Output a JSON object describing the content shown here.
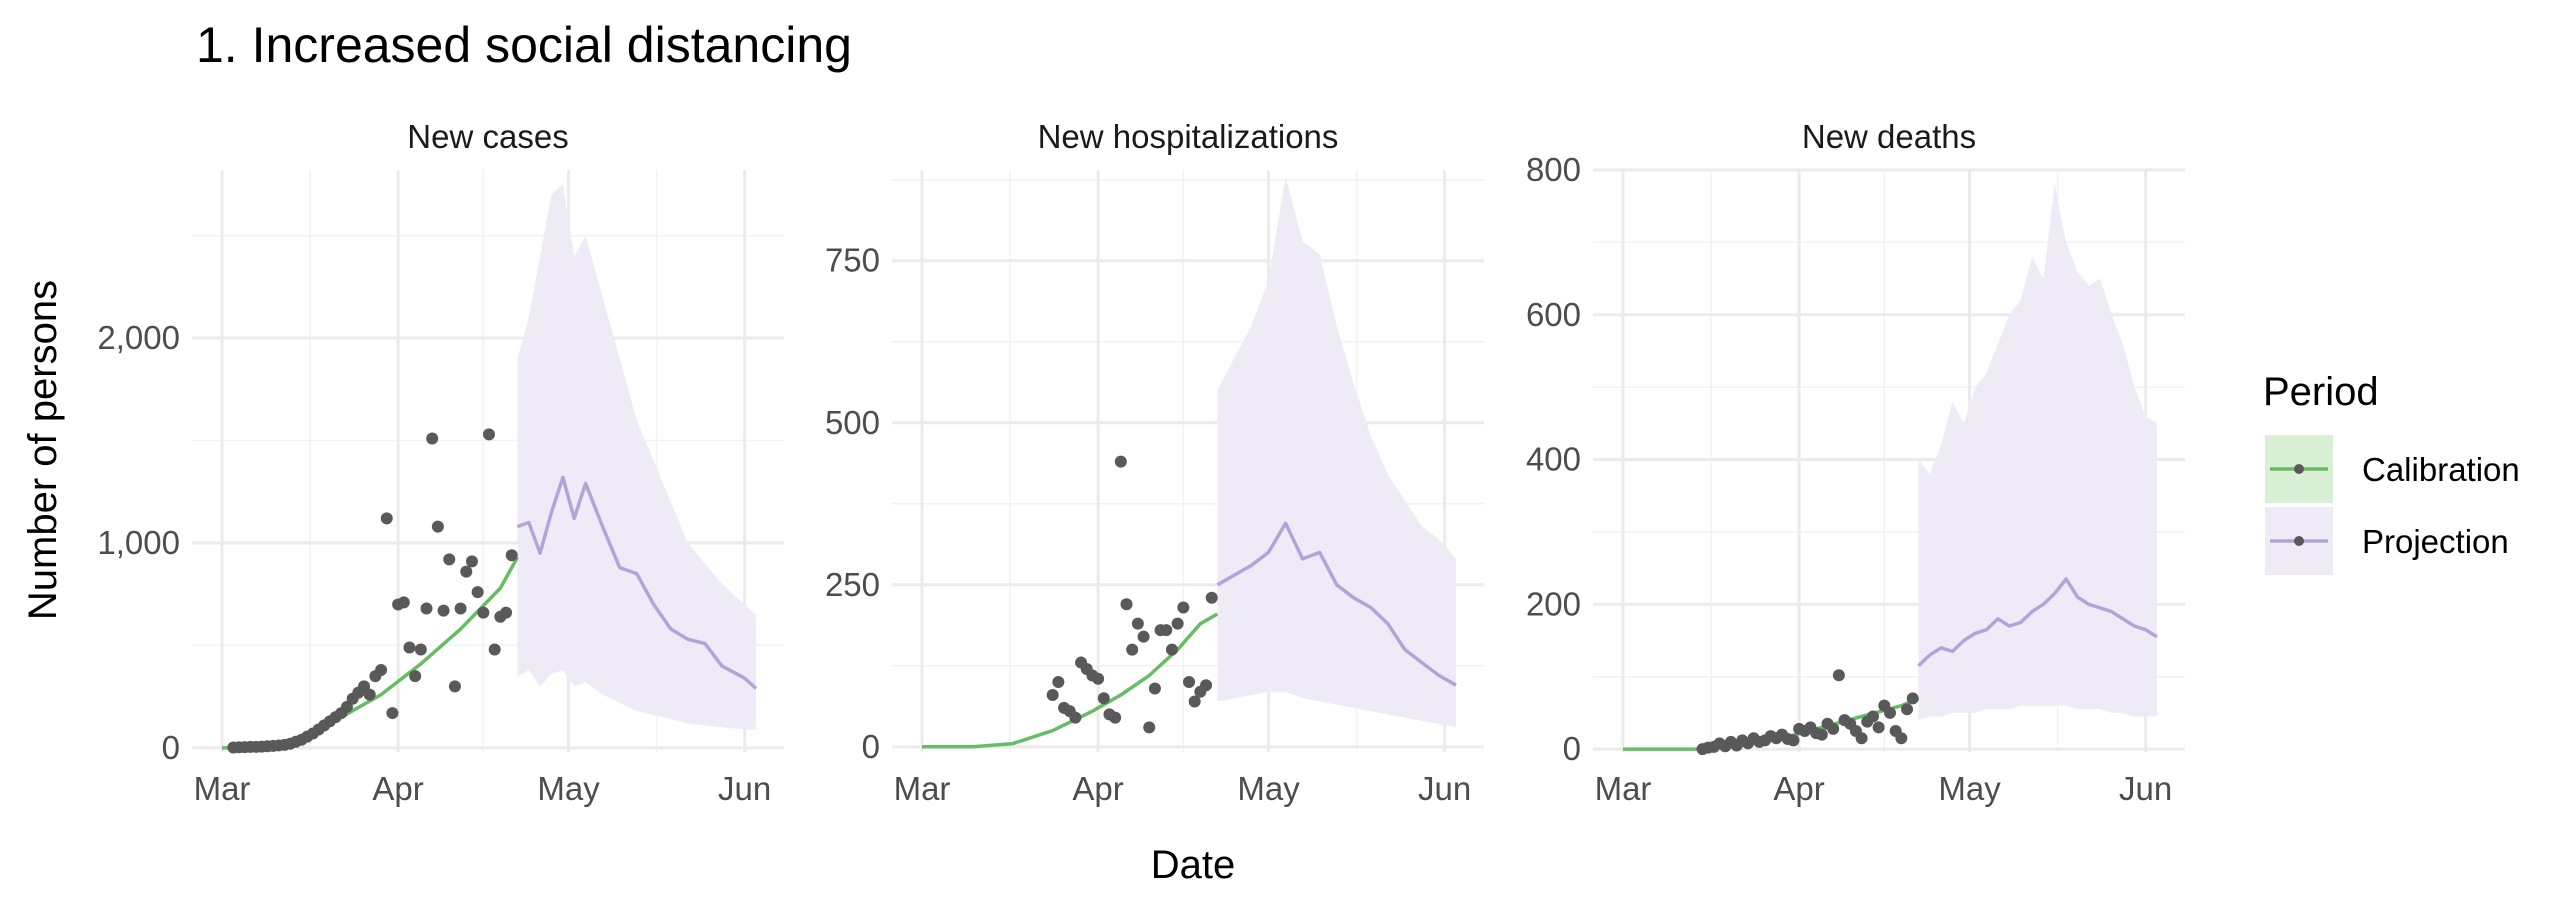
{
  "chart_data": {
    "type": "line",
    "title": "1. Increased social distancing",
    "xlabel": "Date",
    "ylabel": "Number of persons",
    "x_range": [
      "2020-03-01",
      "2020-06-03"
    ],
    "x_ticks": [
      "2020-03-01",
      "2020-04-01",
      "2020-05-01",
      "2020-06-01"
    ],
    "x_tick_labels": [
      "Mar",
      "Apr",
      "May",
      "Jun"
    ],
    "legend": {
      "title": "Period",
      "position": "right",
      "entries": [
        {
          "label": "Calibration",
          "color": "#66bd63"
        },
        {
          "label": "Projection",
          "color": "#b3a4d7"
        }
      ]
    },
    "grid": true,
    "colors": {
      "calibration": "#66bd63",
      "projection": "#b3a4d7",
      "ribbon": "#efebf6",
      "calibration_ribbon": "#d9efd6",
      "points": "#595959",
      "grid": "#ebebeb"
    },
    "panels": [
      {
        "title": "New cases",
        "ylim": [
          -20,
          2820
        ],
        "y_ticks": [
          0,
          1000,
          2000
        ],
        "y_tick_labels": [
          "0",
          "1,000",
          "2,000"
        ],
        "calibration": {
          "x": [
            "2020-03-01",
            "2020-03-08",
            "2020-03-15",
            "2020-03-22",
            "2020-03-29",
            "2020-04-05",
            "2020-04-12",
            "2020-04-19",
            "2020-04-22"
          ],
          "y": [
            0,
            5,
            30,
            150,
            260,
            410,
            580,
            780,
            930
          ]
        },
        "projection": {
          "x": [
            "2020-04-22",
            "2020-04-24",
            "2020-04-26",
            "2020-04-28",
            "2020-04-30",
            "2020-05-02",
            "2020-05-04",
            "2020-05-07",
            "2020-05-10",
            "2020-05-13",
            "2020-05-16",
            "2020-05-19",
            "2020-05-22",
            "2020-05-25",
            "2020-05-28",
            "2020-06-01",
            "2020-06-03"
          ],
          "y": [
            1080,
            1100,
            950,
            1150,
            1320,
            1120,
            1290,
            1080,
            880,
            850,
            700,
            580,
            530,
            510,
            400,
            340,
            290
          ],
          "lower": [
            350,
            380,
            300,
            360,
            380,
            300,
            320,
            260,
            220,
            180,
            160,
            140,
            120,
            110,
            100,
            90,
            90
          ],
          "upper": [
            1900,
            2100,
            2400,
            2700,
            2750,
            2400,
            2500,
            2200,
            1900,
            1600,
            1400,
            1200,
            1000,
            900,
            800,
            700,
            650
          ]
        },
        "observed": {
          "x": [
            "2020-03-03",
            "2020-03-04",
            "2020-03-05",
            "2020-03-06",
            "2020-03-07",
            "2020-03-08",
            "2020-03-09",
            "2020-03-10",
            "2020-03-11",
            "2020-03-12",
            "2020-03-13",
            "2020-03-14",
            "2020-03-15",
            "2020-03-16",
            "2020-03-17",
            "2020-03-18",
            "2020-03-19",
            "2020-03-20",
            "2020-03-21",
            "2020-03-22",
            "2020-03-23",
            "2020-03-24",
            "2020-03-25",
            "2020-03-26",
            "2020-03-27",
            "2020-03-28",
            "2020-03-29",
            "2020-03-30",
            "2020-03-31",
            "2020-04-01",
            "2020-04-02",
            "2020-04-03",
            "2020-04-04",
            "2020-04-05",
            "2020-04-06",
            "2020-04-07",
            "2020-04-08",
            "2020-04-09",
            "2020-04-10",
            "2020-04-11",
            "2020-04-12",
            "2020-04-13",
            "2020-04-14",
            "2020-04-15",
            "2020-04-16",
            "2020-04-17",
            "2020-04-18",
            "2020-04-19",
            "2020-04-20",
            "2020-04-21"
          ],
          "y": [
            2,
            3,
            4,
            5,
            5,
            6,
            8,
            10,
            12,
            15,
            20,
            30,
            40,
            55,
            70,
            90,
            110,
            130,
            150,
            170,
            200,
            240,
            270,
            300,
            260,
            350,
            380,
            1120,
            170,
            700,
            710,
            490,
            350,
            480,
            680,
            1510,
            1080,
            670,
            920,
            300,
            680,
            860,
            910,
            760,
            660,
            1530,
            480,
            640,
            660,
            940
          ]
        }
      },
      {
        "title": "New hospitalizations",
        "ylim": [
          -8,
          890
        ],
        "y_ticks": [
          0,
          250,
          500,
          750
        ],
        "y_tick_labels": [
          "0",
          "250",
          "500",
          "750"
        ],
        "calibration": {
          "x": [
            "2020-03-01",
            "2020-03-10",
            "2020-03-17",
            "2020-03-24",
            "2020-03-31",
            "2020-04-05",
            "2020-04-10",
            "2020-04-15",
            "2020-04-19",
            "2020-04-22"
          ],
          "y": [
            0,
            0,
            5,
            25,
            55,
            80,
            110,
            150,
            190,
            205
          ]
        },
        "projection": {
          "x": [
            "2020-04-22",
            "2020-04-25",
            "2020-04-28",
            "2020-05-01",
            "2020-05-04",
            "2020-05-07",
            "2020-05-10",
            "2020-05-13",
            "2020-05-16",
            "2020-05-19",
            "2020-05-22",
            "2020-05-25",
            "2020-05-28",
            "2020-05-31",
            "2020-06-03"
          ],
          "y": [
            250,
            265,
            280,
            300,
            345,
            290,
            300,
            250,
            230,
            215,
            190,
            150,
            130,
            110,
            95
          ],
          "lower": [
            70,
            75,
            80,
            85,
            85,
            75,
            70,
            65,
            60,
            55,
            50,
            45,
            40,
            35,
            30
          ],
          "upper": [
            550,
            600,
            650,
            720,
            880,
            780,
            760,
            650,
            560,
            480,
            420,
            380,
            340,
            320,
            290
          ]
        },
        "observed": {
          "x": [
            "2020-03-24",
            "2020-03-25",
            "2020-03-26",
            "2020-03-27",
            "2020-03-28",
            "2020-03-29",
            "2020-03-30",
            "2020-03-31",
            "2020-04-01",
            "2020-04-02",
            "2020-04-03",
            "2020-04-04",
            "2020-04-05",
            "2020-04-06",
            "2020-04-07",
            "2020-04-08",
            "2020-04-09",
            "2020-04-10",
            "2020-04-11",
            "2020-04-12",
            "2020-04-13",
            "2020-04-14",
            "2020-04-15",
            "2020-04-16",
            "2020-04-17",
            "2020-04-18",
            "2020-04-19",
            "2020-04-20",
            "2020-04-21"
          ],
          "y": [
            80,
            100,
            60,
            55,
            45,
            130,
            120,
            110,
            105,
            75,
            50,
            45,
            440,
            220,
            150,
            190,
            170,
            30,
            90,
            180,
            180,
            150,
            190,
            215,
            100,
            70,
            85,
            95,
            230
          ]
        }
      },
      {
        "title": "New deaths",
        "ylim": [
          -4,
          800
        ],
        "y_ticks": [
          0,
          200,
          400,
          600,
          800
        ],
        "y_tick_labels": [
          "0",
          "200",
          "400",
          "600",
          "800"
        ],
        "calibration": {
          "x": [
            "2020-03-01",
            "2020-03-15",
            "2020-03-22",
            "2020-03-29",
            "2020-04-05",
            "2020-04-12",
            "2020-04-19",
            "2020-04-22"
          ],
          "y": [
            0,
            0,
            5,
            15,
            30,
            45,
            60,
            70
          ]
        },
        "projection": {
          "x": [
            "2020-04-22",
            "2020-04-24",
            "2020-04-26",
            "2020-04-28",
            "2020-04-30",
            "2020-05-02",
            "2020-05-04",
            "2020-05-06",
            "2020-05-08",
            "2020-05-10",
            "2020-05-12",
            "2020-05-14",
            "2020-05-16",
            "2020-05-18",
            "2020-05-20",
            "2020-05-22",
            "2020-05-24",
            "2020-05-26",
            "2020-05-28",
            "2020-05-30",
            "2020-06-01",
            "2020-06-03"
          ],
          "y": [
            115,
            130,
            140,
            135,
            150,
            160,
            165,
            180,
            170,
            175,
            190,
            200,
            215,
            235,
            210,
            200,
            195,
            190,
            180,
            170,
            165,
            155
          ],
          "lower": [
            40,
            45,
            45,
            50,
            50,
            50,
            55,
            55,
            55,
            60,
            60,
            60,
            60,
            60,
            55,
            55,
            55,
            50,
            50,
            45,
            45,
            45
          ],
          "upper": [
            400,
            380,
            420,
            480,
            450,
            500,
            520,
            560,
            600,
            620,
            680,
            650,
            780,
            700,
            660,
            640,
            650,
            600,
            560,
            500,
            460,
            450
          ]
        },
        "observed": {
          "x": [
            "2020-03-15",
            "2020-03-16",
            "2020-03-17",
            "2020-03-18",
            "2020-03-19",
            "2020-03-20",
            "2020-03-21",
            "2020-03-22",
            "2020-03-23",
            "2020-03-24",
            "2020-03-25",
            "2020-03-26",
            "2020-03-27",
            "2020-03-28",
            "2020-03-29",
            "2020-03-30",
            "2020-03-31",
            "2020-04-01",
            "2020-04-02",
            "2020-04-03",
            "2020-04-04",
            "2020-04-05",
            "2020-04-06",
            "2020-04-07",
            "2020-04-08",
            "2020-04-09",
            "2020-04-10",
            "2020-04-11",
            "2020-04-12",
            "2020-04-13",
            "2020-04-14",
            "2020-04-15",
            "2020-04-16",
            "2020-04-17",
            "2020-04-18",
            "2020-04-19",
            "2020-04-20",
            "2020-04-21"
          ],
          "y": [
            0,
            2,
            3,
            8,
            4,
            10,
            5,
            12,
            8,
            15,
            10,
            12,
            18,
            15,
            20,
            14,
            12,
            28,
            25,
            30,
            22,
            20,
            35,
            28,
            102,
            40,
            35,
            25,
            15,
            38,
            45,
            30,
            60,
            50,
            25,
            15,
            55,
            70
          ]
        }
      }
    ]
  }
}
